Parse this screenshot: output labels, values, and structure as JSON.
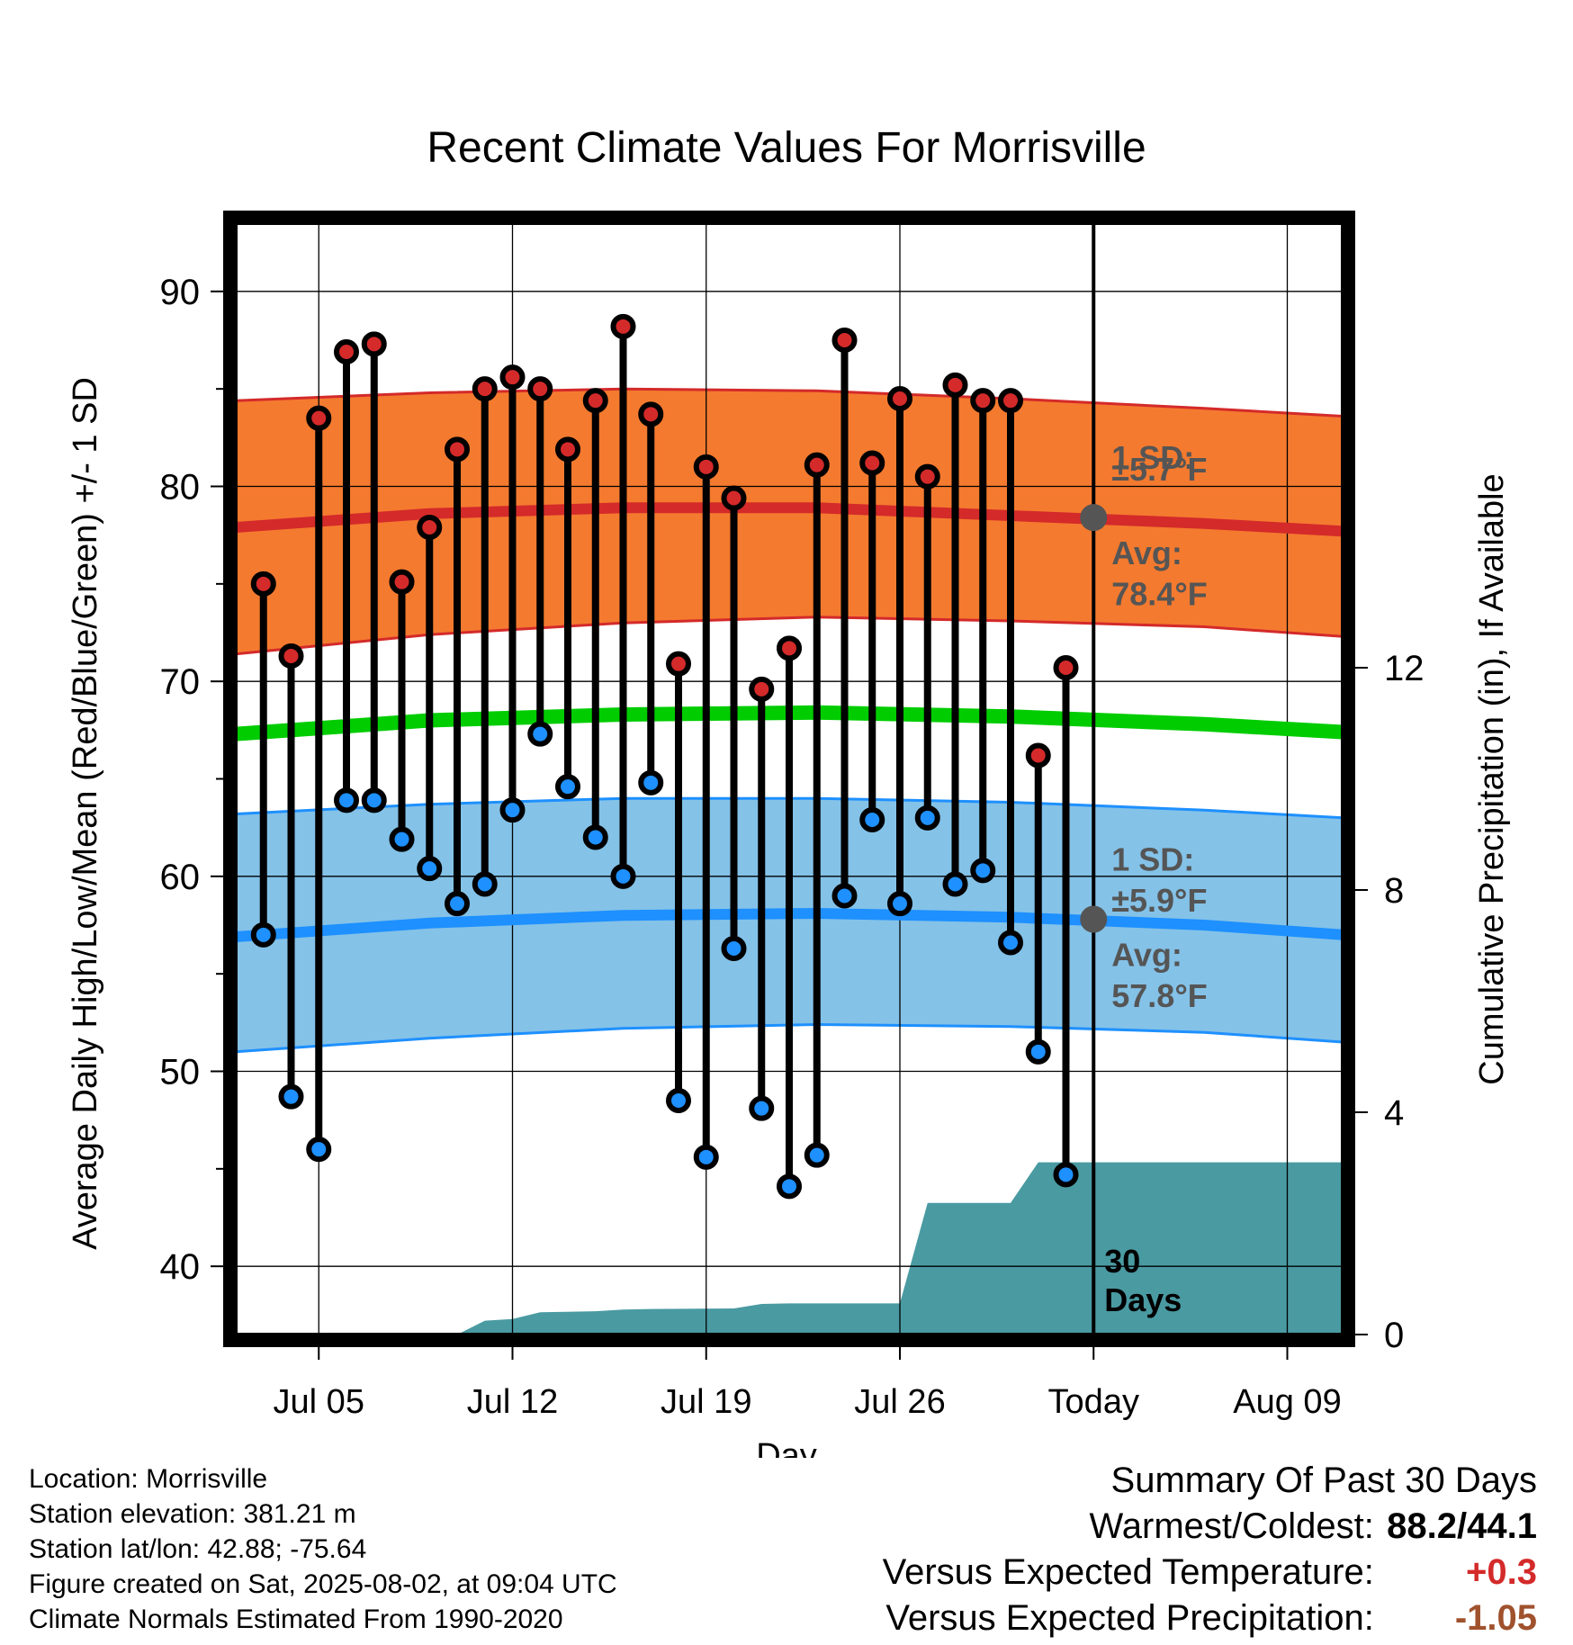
{
  "chart_data": {
    "type": "line",
    "title": "Recent Climate Values For Morrisville",
    "xlabel": "Day",
    "ylabel_left": "Average Daily High/Low/Mean (Red/Blue/Green) +/- 1 SD",
    "ylabel_right": "Cumulative Precipitation (in), If Available",
    "xlim": [
      "2025-07-02",
      "2025-08-11"
    ],
    "ylim_left": [
      36.5,
      93.5
    ],
    "ylim_right": [
      0,
      20
    ],
    "x_ticks": [
      {
        "date": "2025-07-05",
        "label": "Jul 05"
      },
      {
        "date": "2025-07-12",
        "label": "Jul 12"
      },
      {
        "date": "2025-07-19",
        "label": "Jul 19"
      },
      {
        "date": "2025-07-26",
        "label": "Jul 26"
      },
      {
        "date": "2025-08-02",
        "label": "Today"
      },
      {
        "date": "2025-08-09",
        "label": "Aug 09"
      }
    ],
    "y_ticks_left": [
      40,
      50,
      60,
      70,
      80,
      90
    ],
    "y_ticks_right": [
      0,
      4,
      8,
      12
    ],
    "grid": true,
    "colors": {
      "high": "#d42a2a",
      "low": "#1e90ff",
      "mean": "#00cc00",
      "high_band": "#f47a2f",
      "low_band": "#84c2e8",
      "precip": "#4a9aa2",
      "annotation": "#555555"
    },
    "normals": {
      "high_mean": [
        {
          "x": "2025-07-02",
          "y": 77.9
        },
        {
          "x": "2025-07-09",
          "y": 78.6
        },
        {
          "x": "2025-07-16",
          "y": 78.9
        },
        {
          "x": "2025-07-23",
          "y": 78.9
        },
        {
          "x": "2025-07-30",
          "y": 78.5
        },
        {
          "x": "2025-08-06",
          "y": 78.1
        },
        {
          "x": "2025-08-11",
          "y": 77.7
        }
      ],
      "high_upper": [
        {
          "x": "2025-07-02",
          "y": 84.4
        },
        {
          "x": "2025-07-09",
          "y": 84.8
        },
        {
          "x": "2025-07-16",
          "y": 85.0
        },
        {
          "x": "2025-07-23",
          "y": 84.9
        },
        {
          "x": "2025-07-30",
          "y": 84.5
        },
        {
          "x": "2025-08-06",
          "y": 84.0
        },
        {
          "x": "2025-08-11",
          "y": 83.6
        }
      ],
      "high_lower": [
        {
          "x": "2025-07-02",
          "y": 71.4
        },
        {
          "x": "2025-07-09",
          "y": 72.4
        },
        {
          "x": "2025-07-16",
          "y": 73.0
        },
        {
          "x": "2025-07-23",
          "y": 73.3
        },
        {
          "x": "2025-07-30",
          "y": 73.1
        },
        {
          "x": "2025-08-06",
          "y": 72.8
        },
        {
          "x": "2025-08-11",
          "y": 72.3
        }
      ],
      "mean": [
        {
          "x": "2025-07-02",
          "y": 67.3
        },
        {
          "x": "2025-07-09",
          "y": 68.0
        },
        {
          "x": "2025-07-16",
          "y": 68.3
        },
        {
          "x": "2025-07-23",
          "y": 68.4
        },
        {
          "x": "2025-07-30",
          "y": 68.2
        },
        {
          "x": "2025-08-06",
          "y": 67.8
        },
        {
          "x": "2025-08-11",
          "y": 67.4
        }
      ],
      "low_mean": [
        {
          "x": "2025-07-02",
          "y": 56.9
        },
        {
          "x": "2025-07-09",
          "y": 57.6
        },
        {
          "x": "2025-07-16",
          "y": 58.0
        },
        {
          "x": "2025-07-23",
          "y": 58.1
        },
        {
          "x": "2025-07-30",
          "y": 57.9
        },
        {
          "x": "2025-08-06",
          "y": 57.5
        },
        {
          "x": "2025-08-11",
          "y": 57.0
        }
      ],
      "low_upper": [
        {
          "x": "2025-07-02",
          "y": 63.2
        },
        {
          "x": "2025-07-09",
          "y": 63.7
        },
        {
          "x": "2025-07-16",
          "y": 64.0
        },
        {
          "x": "2025-07-23",
          "y": 64.0
        },
        {
          "x": "2025-07-30",
          "y": 63.8
        },
        {
          "x": "2025-08-06",
          "y": 63.4
        },
        {
          "x": "2025-08-11",
          "y": 63.0
        }
      ],
      "low_lower": [
        {
          "x": "2025-07-02",
          "y": 51.0
        },
        {
          "x": "2025-07-09",
          "y": 51.7
        },
        {
          "x": "2025-07-16",
          "y": 52.2
        },
        {
          "x": "2025-07-23",
          "y": 52.4
        },
        {
          "x": "2025-07-30",
          "y": 52.3
        },
        {
          "x": "2025-08-06",
          "y": 52.0
        },
        {
          "x": "2025-08-11",
          "y": 51.5
        }
      ]
    },
    "daily": [
      {
        "date": "2025-07-03",
        "high": 75.0,
        "low": 57.0
      },
      {
        "date": "2025-07-04",
        "high": 71.3,
        "low": 48.7
      },
      {
        "date": "2025-07-05",
        "high": 83.5,
        "low": 46.0
      },
      {
        "date": "2025-07-06",
        "high": 86.9,
        "low": 63.9
      },
      {
        "date": "2025-07-07",
        "high": 87.3,
        "low": 63.9
      },
      {
        "date": "2025-07-08",
        "high": 75.1,
        "low": 61.9
      },
      {
        "date": "2025-07-09",
        "high": 77.9,
        "low": 60.4
      },
      {
        "date": "2025-07-10",
        "high": 81.9,
        "low": 58.6
      },
      {
        "date": "2025-07-11",
        "high": 85.0,
        "low": 59.6
      },
      {
        "date": "2025-07-12",
        "high": 85.6,
        "low": 63.4
      },
      {
        "date": "2025-07-13",
        "high": 85.0,
        "low": 67.3
      },
      {
        "date": "2025-07-14",
        "high": 81.9,
        "low": 64.6
      },
      {
        "date": "2025-07-15",
        "high": 84.4,
        "low": 62.0
      },
      {
        "date": "2025-07-16",
        "high": 88.2,
        "low": 60.0
      },
      {
        "date": "2025-07-17",
        "high": 83.7,
        "low": 64.8
      },
      {
        "date": "2025-07-18",
        "high": 70.9,
        "low": 48.5
      },
      {
        "date": "2025-07-19",
        "high": 81.0,
        "low": 45.6
      },
      {
        "date": "2025-07-20",
        "high": 79.4,
        "low": 56.3
      },
      {
        "date": "2025-07-21",
        "high": 69.6,
        "low": 48.1
      },
      {
        "date": "2025-07-22",
        "high": 71.7,
        "low": 44.1
      },
      {
        "date": "2025-07-23",
        "high": 81.1,
        "low": 45.7
      },
      {
        "date": "2025-07-24",
        "high": 87.5,
        "low": 59.0
      },
      {
        "date": "2025-07-25",
        "high": 81.2,
        "low": 62.9
      },
      {
        "date": "2025-07-26",
        "high": 84.5,
        "low": 58.6
      },
      {
        "date": "2025-07-27",
        "high": 80.5,
        "low": 63.0
      },
      {
        "date": "2025-07-28",
        "high": 85.2,
        "low": 59.6
      },
      {
        "date": "2025-07-29",
        "high": 84.4,
        "low": 60.3
      },
      {
        "date": "2025-07-30",
        "high": 84.4,
        "low": 56.6
      },
      {
        "date": "2025-07-31",
        "high": 66.2,
        "low": 51.0
      },
      {
        "date": "2025-08-01",
        "high": 70.7,
        "low": 44.7
      }
    ],
    "precip_cumulative": [
      {
        "x": "2025-07-02",
        "y": 0
      },
      {
        "x": "2025-07-10",
        "y": 0
      },
      {
        "x": "2025-07-11",
        "y": 0.25
      },
      {
        "x": "2025-07-12",
        "y": 0.28
      },
      {
        "x": "2025-07-13",
        "y": 0.4
      },
      {
        "x": "2025-07-15",
        "y": 0.42
      },
      {
        "x": "2025-07-16",
        "y": 0.45
      },
      {
        "x": "2025-07-17",
        "y": 0.46
      },
      {
        "x": "2025-07-20",
        "y": 0.47
      },
      {
        "x": "2025-07-21",
        "y": 0.55
      },
      {
        "x": "2025-07-22",
        "y": 0.56
      },
      {
        "x": "2025-07-26",
        "y": 0.56
      },
      {
        "x": "2025-07-27",
        "y": 2.37
      },
      {
        "x": "2025-07-30",
        "y": 2.37
      },
      {
        "x": "2025-07-31",
        "y": 3.1
      },
      {
        "x": "2025-08-11",
        "y": 3.1
      }
    ],
    "annotations": {
      "high_sd_label": "1 SD:",
      "high_sd_value": "±5.7°F",
      "high_avg_label": "Avg:",
      "high_avg_value": "78.4°F",
      "low_sd_label": "1 SD:",
      "low_sd_value": "±5.9°F",
      "low_avg_label": "Avg:",
      "low_avg_value": "57.8°F",
      "today_high_avg": 78.4,
      "today_low_avg": 57.8,
      "window_label_1": "30",
      "window_label_2": "Days"
    }
  },
  "footer": {
    "location": "Location: Morrisville",
    "elevation": "Station elevation: 381.21 m",
    "latlon": "Station lat/lon: 42.88; -75.64",
    "created": "Figure created on Sat, 2025-08-02, at 09:04 UTC",
    "normals": "Climate Normals Estimated From 1990-2020"
  },
  "summary": {
    "title": "Summary Of Past 30 Days",
    "warmest_label": "Warmest/Coldest:",
    "warmest_value": "88.2/44.1",
    "temp_label": "Versus Expected Temperature:",
    "temp_value": "+0.3",
    "temp_color": "#d42a2a",
    "precip_label": "Versus Expected Precipitation:",
    "precip_value": "-1.05",
    "precip_color": "#a0522d"
  }
}
